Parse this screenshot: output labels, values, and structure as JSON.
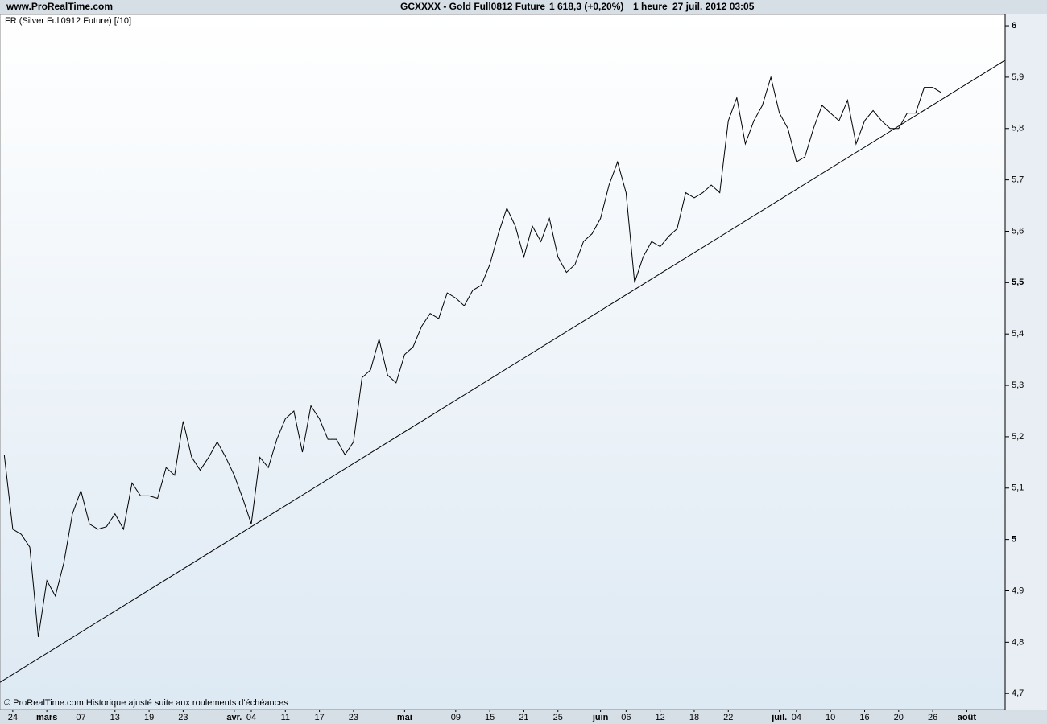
{
  "header": {
    "site": "www.ProRealTime.com",
    "instrument": "GCXXXX - Gold Full0812 Future",
    "price": "1 618,3 (+0,20%)",
    "timeframe": "1 heure",
    "datetime": "27 juil. 2012 03:05"
  },
  "chart_data": {
    "type": "line",
    "footnote": "© ProRealTime.com  Historique ajusté suite aux roulements d'échéances",
    "categories": [
      null,
      "24",
      null,
      null,
      null,
      "mars",
      null,
      null,
      null,
      "07",
      null,
      null,
      null,
      "13",
      null,
      null,
      null,
      "19",
      null,
      null,
      null,
      "23",
      null,
      null,
      null,
      null,
      null,
      "avr.",
      null,
      "04",
      null,
      null,
      null,
      "11",
      null,
      null,
      null,
      "17",
      null,
      null,
      null,
      "23",
      null,
      null,
      null,
      null,
      null,
      "mai",
      null,
      null,
      null,
      null,
      null,
      "09",
      null,
      null,
      null,
      "15",
      null,
      null,
      null,
      "21",
      null,
      null,
      null,
      "25",
      null,
      null,
      null,
      null,
      "juin",
      null,
      null,
      "06",
      null,
      null,
      null,
      "12",
      null,
      null,
      null,
      "18",
      null,
      null,
      null,
      "22",
      null,
      null,
      null,
      null,
      null,
      "juil.",
      null,
      "04",
      null,
      null,
      null,
      "10",
      null,
      null,
      null,
      "16",
      null,
      null,
      null,
      "20",
      null,
      null,
      null,
      "26",
      null,
      null,
      null,
      "août",
      null,
      null,
      null,
      null
    ],
    "series": [
      {
        "name": "FR (Silver Full0912 Future) [/10]",
        "color": "#000000",
        "values": [
          5.165,
          5.02,
          5.01,
          4.985,
          4.81,
          4.92,
          4.89,
          4.955,
          5.05,
          5.095,
          5.03,
          5.02,
          5.025,
          5.05,
          5.02,
          5.11,
          5.085,
          5.085,
          5.08,
          5.14,
          5.125,
          5.23,
          5.16,
          5.135,
          5.16,
          5.19,
          5.16,
          5.125,
          5.08,
          5.03,
          5.16,
          5.14,
          5.195,
          5.235,
          5.25,
          5.17,
          5.26,
          5.235,
          5.195,
          5.195,
          5.165,
          5.19,
          5.315,
          5.33,
          5.39,
          5.32,
          5.305,
          5.36,
          5.375,
          5.415,
          5.44,
          5.43,
          5.48,
          5.47,
          5.455,
          5.485,
          5.495,
          5.535,
          5.595,
          5.645,
          5.61,
          5.55,
          5.61,
          5.58,
          5.625,
          5.55,
          5.52,
          5.535,
          5.58,
          5.595,
          5.625,
          5.69,
          5.735,
          5.675,
          5.5,
          5.55,
          5.58,
          5.57,
          5.59,
          5.605,
          5.675,
          5.665,
          5.675,
          5.69,
          5.675,
          5.815,
          5.86,
          5.77,
          5.815,
          5.845,
          5.9,
          5.83,
          5.8,
          5.735,
          5.745,
          5.8,
          5.845,
          5.83,
          5.815,
          5.855,
          5.77,
          5.815,
          5.835,
          5.815,
          5.8,
          5.8,
          5.83,
          5.83,
          5.88,
          5.88,
          5.87,
          null,
          null,
          null,
          null,
          null,
          null,
          null
        ]
      }
    ],
    "trendline": {
      "from": 4.722,
      "to": 5.933,
      "color": "#000000"
    },
    "ylim": [
      4.669,
      6.022
    ],
    "yticks": [
      {
        "value": 4.7,
        "label": "4,7"
      },
      {
        "value": 4.8,
        "label": "4,8"
      },
      {
        "value": 4.9,
        "label": "4,9"
      },
      5,
      {
        "value": 5.1,
        "label": "5,1"
      },
      {
        "value": 5.2,
        "label": "5,2"
      },
      {
        "value": 5.3,
        "label": "5,3"
      },
      {
        "value": 5.4,
        "label": "5,4"
      },
      {
        "value": 5.5,
        "label": "5,5"
      },
      {
        "value": 5.6,
        "label": "5,6"
      },
      {
        "value": 5.7,
        "label": "5,7"
      },
      {
        "value": 5.8,
        "label": "5,8"
      },
      {
        "value": 5.9,
        "label": "5,9"
      },
      6
    ],
    "grid": false
  }
}
